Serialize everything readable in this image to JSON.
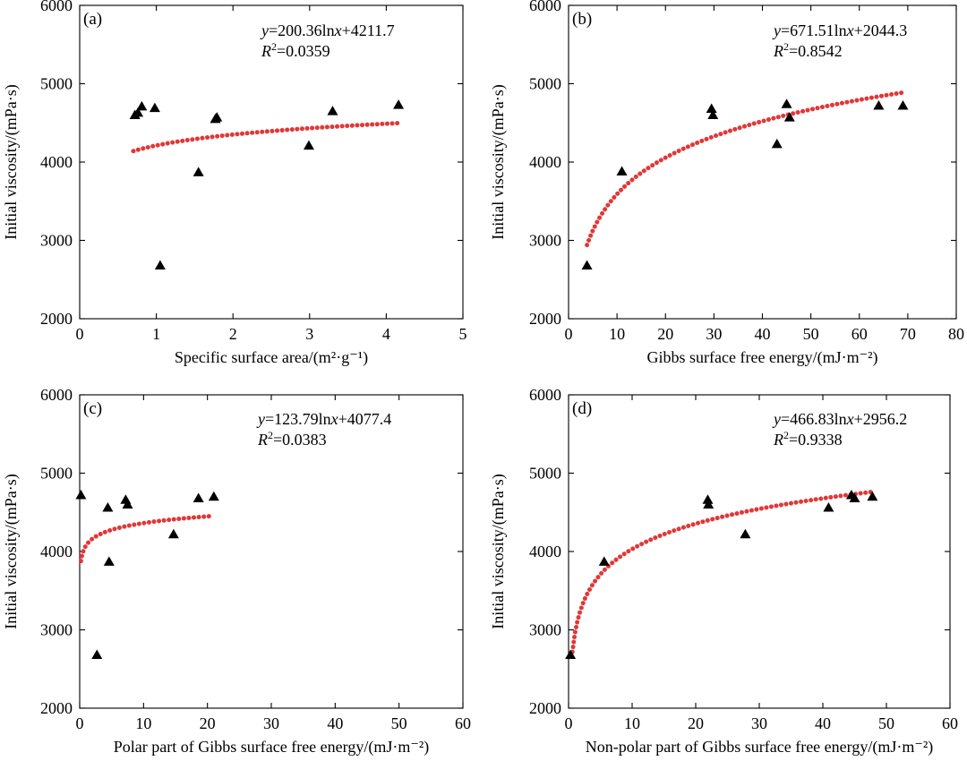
{
  "chart_data": [
    {
      "id": "a",
      "type": "scatter",
      "panel_label": "(a)",
      "xlabel": "Specific surface area/(m²·g⁻¹)",
      "ylabel": "Initial viscosity/(mPa·s)",
      "xlim": [
        0,
        5
      ],
      "ylim": [
        2000,
        6000
      ],
      "xticks": [
        0,
        1,
        2,
        3,
        4,
        5
      ],
      "yticks": [
        2000,
        3000,
        4000,
        5000,
        6000
      ],
      "grid": false,
      "equation": "y=200.36lnx+4211.7",
      "r_squared": "R²=0.0359",
      "fit": {
        "a": 200.36,
        "b": 4211.7,
        "x_range": [
          0.7,
          4.15
        ]
      },
      "points": [
        {
          "x": 0.72,
          "y": 4600
        },
        {
          "x": 0.76,
          "y": 4630
        },
        {
          "x": 0.81,
          "y": 4710
        },
        {
          "x": 0.98,
          "y": 4690
        },
        {
          "x": 1.05,
          "y": 2680
        },
        {
          "x": 1.55,
          "y": 3870
        },
        {
          "x": 1.77,
          "y": 4550
        },
        {
          "x": 1.79,
          "y": 4570
        },
        {
          "x": 2.99,
          "y": 4210
        },
        {
          "x": 3.3,
          "y": 4650
        },
        {
          "x": 4.16,
          "y": 4730
        }
      ]
    },
    {
      "id": "b",
      "type": "scatter",
      "panel_label": "(b)",
      "xlabel": "Gibbs surface free energy/(mJ·m⁻²)",
      "ylabel": "Initial viscosity/(mPa·s)",
      "xlim": [
        0,
        80
      ],
      "ylim": [
        2000,
        6000
      ],
      "xticks": [
        0,
        10,
        20,
        30,
        40,
        50,
        60,
        70,
        80
      ],
      "yticks": [
        2000,
        3000,
        4000,
        5000,
        6000
      ],
      "grid": false,
      "equation": "y=671.51lnx+2044.3",
      "r_squared": "R²=0.8542",
      "fit": {
        "a": 671.51,
        "b": 2044.3,
        "x_range": [
          3.8,
          69
        ]
      },
      "points": [
        {
          "x": 3.8,
          "y": 2680
        },
        {
          "x": 11,
          "y": 3880
        },
        {
          "x": 29.5,
          "y": 4680
        },
        {
          "x": 29.8,
          "y": 4600
        },
        {
          "x": 43,
          "y": 4230
        },
        {
          "x": 45,
          "y": 4740
        },
        {
          "x": 45.6,
          "y": 4570
        },
        {
          "x": 64,
          "y": 4720
        },
        {
          "x": 69,
          "y": 4720
        }
      ]
    },
    {
      "id": "c",
      "type": "scatter",
      "panel_label": "(c)",
      "xlabel": "Polar part of Gibbs surface free energy/(mJ·m⁻²)",
      "ylabel": "Initial viscosity/(mPa·s)",
      "xlim": [
        0,
        60
      ],
      "ylim": [
        2000,
        6000
      ],
      "xticks": [
        0,
        10,
        20,
        30,
        40,
        50,
        60
      ],
      "yticks": [
        2000,
        3000,
        4000,
        5000,
        6000
      ],
      "grid": false,
      "equation": "y=123.79lnx+4077.4",
      "r_squared": "R²=0.0383",
      "fit": {
        "a": 123.79,
        "b": 4077.4,
        "x_range": [
          0.2,
          20.5
        ]
      },
      "points": [
        {
          "x": 0.2,
          "y": 4720
        },
        {
          "x": 2.7,
          "y": 2680
        },
        {
          "x": 4.4,
          "y": 4560
        },
        {
          "x": 4.6,
          "y": 3870
        },
        {
          "x": 7.2,
          "y": 4660
        },
        {
          "x": 7.5,
          "y": 4600
        },
        {
          "x": 14.7,
          "y": 4220
        },
        {
          "x": 18.6,
          "y": 4680
        },
        {
          "x": 21,
          "y": 4700
        }
      ]
    },
    {
      "id": "d",
      "type": "scatter",
      "panel_label": "(d)",
      "xlabel": "Non-polar part of Gibbs surface free energy/(mJ·m⁻²)",
      "ylabel": "Initial viscosity/(mPa·s)",
      "xlim": [
        0,
        60
      ],
      "ylim": [
        2000,
        6000
      ],
      "xticks": [
        0,
        10,
        20,
        30,
        40,
        50,
        60
      ],
      "yticks": [
        2000,
        3000,
        4000,
        5000,
        6000
      ],
      "grid": false,
      "equation": "y=466.83lnx+2956.2",
      "r_squared": "R²=0.9338",
      "fit": {
        "a": 466.83,
        "b": 2956.2,
        "x_range": [
          0.6,
          48
        ]
      },
      "points": [
        {
          "x": 0.3,
          "y": 2680
        },
        {
          "x": 5.6,
          "y": 3870
        },
        {
          "x": 21.9,
          "y": 4660
        },
        {
          "x": 22,
          "y": 4600
        },
        {
          "x": 27.8,
          "y": 4220
        },
        {
          "x": 40.9,
          "y": 4560
        },
        {
          "x": 44.5,
          "y": 4720
        },
        {
          "x": 45,
          "y": 4680
        },
        {
          "x": 47.8,
          "y": 4700
        }
      ]
    }
  ]
}
